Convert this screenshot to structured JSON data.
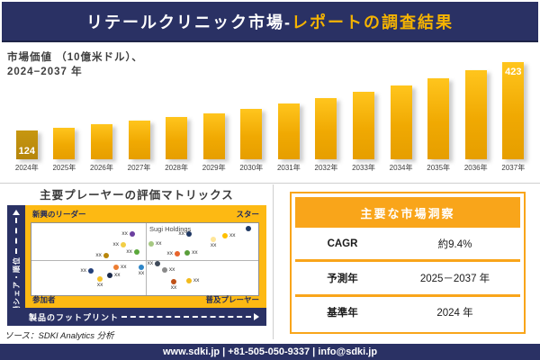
{
  "header": {
    "title_main": "リテールクリニック市場-",
    "title_accent": "レポートの調査結果"
  },
  "chart_data": [
    {
      "type": "bar",
      "title_line1": "市場価値 （10億米ドル）、",
      "title_line2": "2024−2037 年",
      "categories": [
        "2024年",
        "2025年",
        "2026年",
        "2027年",
        "2028年",
        "2029年",
        "2030年",
        "2031年",
        "2032年",
        "2033年",
        "2034年",
        "2035年",
        "2036年",
        "2037年"
      ],
      "values": [
        124,
        136,
        150,
        165,
        181,
        199,
        219,
        240,
        264,
        290,
        319,
        350,
        385,
        423
      ],
      "labeled_values": {
        "2024年": "124",
        "2037年": "423"
      },
      "ylim": [
        0,
        440
      ],
      "grid": false,
      "bar_color": "#F0A902",
      "first_bar_color": "#B5850B"
    },
    {
      "type": "scatter",
      "title": "主要プレーヤーの評価マトリックス",
      "xlabel": "製品のフットプリント",
      "ylabel": "市場シェア・順位",
      "quadrants": {
        "top_left": "新興のリーダー",
        "top_right": "スター",
        "bottom_left": "参加者",
        "bottom_right": "普及プレーヤー"
      },
      "annotation": "Sugi Holdings",
      "point_label": "xx",
      "coords_note": "percent of plot area, origin top-left",
      "points": [
        {
          "x": 44.4,
          "y": 15,
          "color": "#6B3FA0",
          "label_pos": "left"
        },
        {
          "x": 40.5,
          "y": 30,
          "color": "#F2CE46",
          "label_pos": "left"
        },
        {
          "x": 46.4,
          "y": 40,
          "color": "#5BA83B",
          "label_pos": "left"
        },
        {
          "x": 32.9,
          "y": 45,
          "color": "#B8860B",
          "label_pos": "left"
        },
        {
          "x": 52.8,
          "y": 28.8,
          "color": "#A6C882",
          "label_pos": "right"
        },
        {
          "x": 69.4,
          "y": 15,
          "color": "#1F3864",
          "label_pos": "left"
        },
        {
          "x": 80.2,
          "y": 22.5,
          "color": "#FFE699",
          "label_pos": "below"
        },
        {
          "x": 85.3,
          "y": 17.5,
          "color": "#FFC000",
          "label_pos": "right"
        },
        {
          "x": 95.6,
          "y": 7.5,
          "color": "#1F3864",
          "label_pos": "none"
        },
        {
          "x": 64.3,
          "y": 42.5,
          "color": "#E8642C",
          "label_pos": "left"
        },
        {
          "x": 68.7,
          "y": 41.3,
          "color": "#5A9E3A",
          "label_pos": "right"
        },
        {
          "x": 37.3,
          "y": 61.3,
          "color": "#ED7D31",
          "label_pos": "right"
        },
        {
          "x": 48.4,
          "y": 61.3,
          "color": "#2E86C8",
          "label_pos": "below"
        },
        {
          "x": 26.2,
          "y": 66.3,
          "color": "#24407A",
          "label_pos": "left"
        },
        {
          "x": 34.5,
          "y": 72.5,
          "color": "#1B2A4A",
          "label_pos": "right"
        },
        {
          "x": 30.2,
          "y": 77.5,
          "color": "#F7C325",
          "label_pos": "below"
        },
        {
          "x": 55.6,
          "y": 56.3,
          "color": "#3F4A5A",
          "label_pos": "left"
        },
        {
          "x": 58.7,
          "y": 65,
          "color": "#8A8A8A",
          "label_pos": "right"
        },
        {
          "x": 62.7,
          "y": 81.3,
          "color": "#BF5117",
          "label_pos": "below"
        },
        {
          "x": 69.4,
          "y": 80,
          "color": "#F2BB1D",
          "label_pos": "right"
        }
      ]
    }
  ],
  "insights": {
    "title": "主要な市場洞察",
    "rows": [
      {
        "label": "CAGR",
        "value": "約9.4%"
      },
      {
        "label": "予測年",
        "value": "2025－2037 年"
      },
      {
        "label": "基準年",
        "value": "2024 年"
      }
    ]
  },
  "source": "ソース：SDKI Analytics 分析",
  "footer": {
    "text": "www.sdki.jp | +81-505-050-9337 | info@sdki.jp"
  },
  "colors": {
    "navy": "#2A3164",
    "gold_matrix": "#FDB913",
    "gold_table": "#F9A51A",
    "accent_text": "#F5B301",
    "bar_gold": "#F0A902"
  }
}
